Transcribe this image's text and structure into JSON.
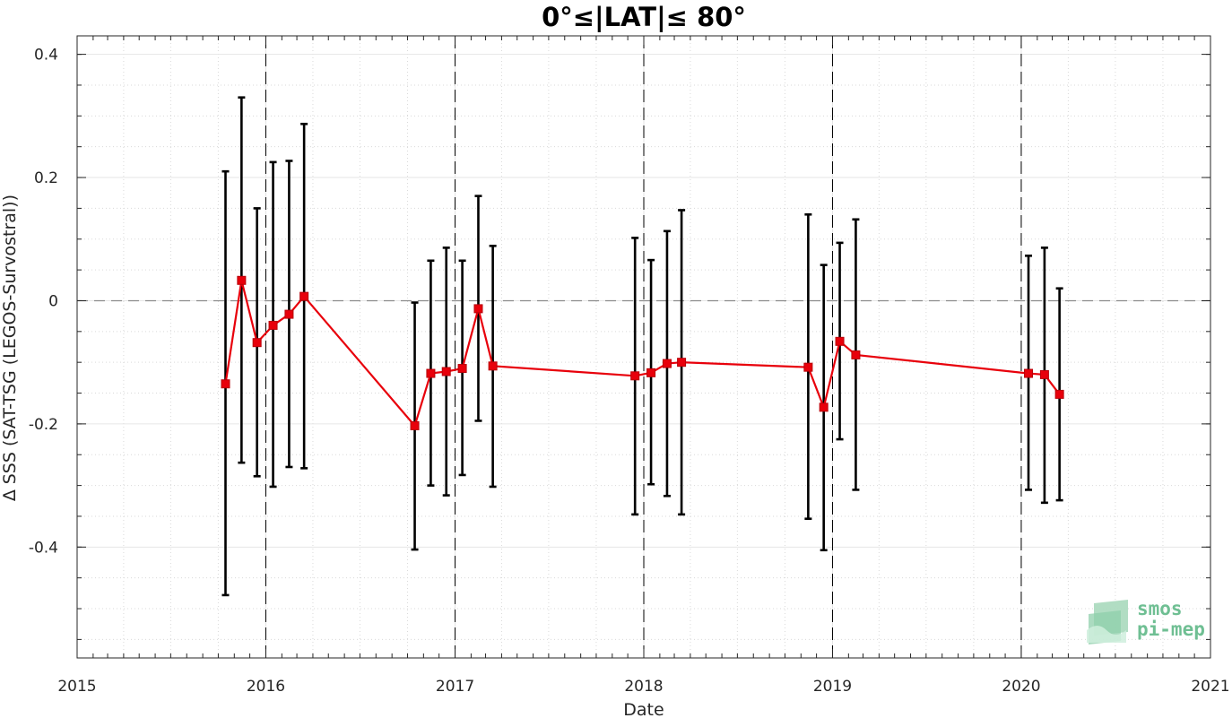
{
  "chart_data": {
    "type": "line",
    "title": "0°≤|LAT|≤ 80°",
    "xlabel": "Date",
    "ylabel": "∆ SSS (SAT-TSG (LEGOS-Survostral))",
    "xlim": [
      "2015-01-01",
      "2021-01-01"
    ],
    "ylim": [
      -0.58,
      0.43
    ],
    "x_ticks": [
      "2015",
      "2016",
      "2017",
      "2018",
      "2019",
      "2020",
      "2021"
    ],
    "y_ticks": [
      -0.4,
      -0.2,
      0,
      0.2,
      0.4
    ],
    "y_tick_labels": [
      "-0.4",
      "-0.2",
      "0",
      "0.2",
      "0.4"
    ],
    "grid": true,
    "minor_grid": true,
    "zero_reference_line": true,
    "year_boundary_lines": [
      "2016-01-01",
      "2017-01-01",
      "2018-01-01",
      "2019-01-01",
      "2020-01-01"
    ],
    "line_color": "#e8000b",
    "errorbar_color": "#000000",
    "series": [
      {
        "marker": "square",
        "x": [
          "2015-10-15",
          "2015-11-15",
          "2015-12-15",
          "2016-01-15",
          "2016-02-15",
          "2016-03-15",
          "2016-10-15",
          "2016-11-15",
          "2016-12-15",
          "2017-01-15",
          "2017-02-15",
          "2017-03-15",
          "2017-12-15",
          "2018-01-15",
          "2018-02-15",
          "2018-03-15",
          "2018-11-15",
          "2018-12-15",
          "2019-01-15",
          "2019-02-15",
          "2020-01-15",
          "2020-02-15",
          "2020-03-15"
        ],
        "y": [
          -0.135,
          0.033,
          -0.068,
          -0.04,
          -0.022,
          0.007,
          -0.203,
          -0.118,
          -0.115,
          -0.11,
          -0.013,
          -0.106,
          -0.122,
          -0.117,
          -0.102,
          -0.1,
          -0.108,
          -0.173,
          -0.066,
          -0.088,
          -0.118,
          -0.12,
          -0.152
        ],
        "error_low": [
          -0.478,
          -0.263,
          -0.285,
          -0.302,
          -0.27,
          -0.272,
          -0.404,
          -0.3,
          -0.316,
          -0.283,
          -0.195,
          -0.302,
          -0.347,
          -0.298,
          -0.317,
          -0.347,
          -0.354,
          -0.405,
          -0.225,
          -0.307,
          -0.307,
          -0.328,
          -0.324
        ],
        "error_high": [
          0.21,
          0.33,
          0.15,
          0.225,
          0.227,
          0.287,
          -0.003,
          0.065,
          0.086,
          0.065,
          0.17,
          0.089,
          0.102,
          0.066,
          0.113,
          0.147,
          0.14,
          0.058,
          0.094,
          0.132,
          0.073,
          0.086,
          0.02
        ]
      }
    ]
  },
  "logo": {
    "line1": "smos",
    "line2": "pi-mep",
    "color": "#6fbf93"
  }
}
